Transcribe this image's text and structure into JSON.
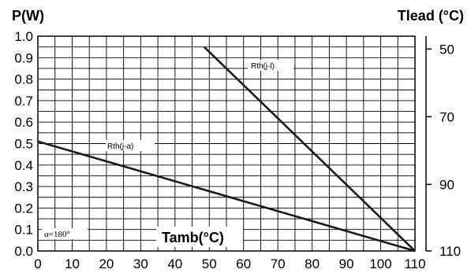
{
  "chart_data": {
    "type": "line",
    "ylabel": "P(W)",
    "y2label": "Tlead (°C)",
    "xlabel": "Tamb(°C)",
    "xlim": [
      0,
      110
    ],
    "ylim": [
      0,
      1.0
    ],
    "x_ticks": [
      "0",
      "10",
      "20",
      "30",
      "40",
      "50",
      "60",
      "70",
      "80",
      "90",
      "100",
      "110"
    ],
    "y_ticks": [
      "0.0",
      "0.1",
      "0.2",
      "0.3",
      "0.4",
      "0.5",
      "0.6",
      "0.7",
      "0.8",
      "0.9",
      "1.0"
    ],
    "y2_ticks": [
      {
        "label": "50",
        "value": 0.94
      },
      {
        "label": "70",
        "value": 0.625
      },
      {
        "label": "90",
        "value": 0.31
      },
      {
        "label": "110",
        "value": 0.0
      }
    ],
    "grid": true,
    "series": [
      {
        "name": "Rth(j-a)",
        "x": [
          0,
          110
        ],
        "y": [
          0.51,
          0.0
        ]
      },
      {
        "name": "Rth(j-l)",
        "x": [
          48.5,
          110
        ],
        "y": [
          0.95,
          0.0
        ]
      }
    ],
    "annotations": [
      "α=180°"
    ]
  }
}
